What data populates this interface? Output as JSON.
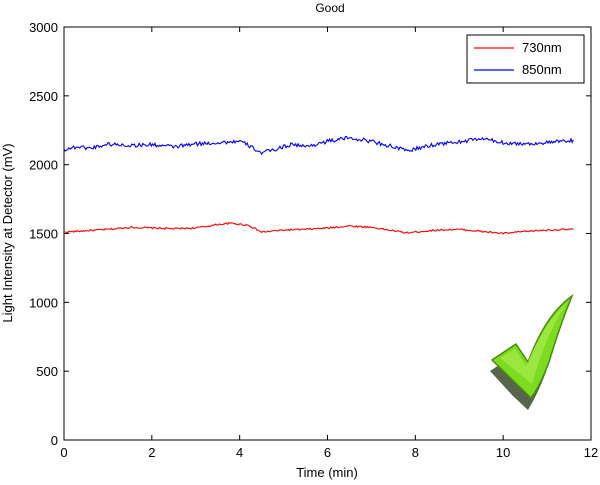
{
  "chart_data": {
    "type": "line",
    "title": "Good",
    "xlabel": "Time (min)",
    "ylabel": "Light Intensity at Detector (mV)",
    "xlim": [
      0,
      12
    ],
    "ylim": [
      0,
      3000
    ],
    "xticks": [
      0,
      2,
      4,
      6,
      8,
      10,
      12
    ],
    "yticks": [
      0,
      500,
      1000,
      1500,
      2000,
      2500,
      3000
    ],
    "grid": false,
    "legend_position": "top-right",
    "series": [
      {
        "name": "730nm",
        "color": "#ff0000",
        "x": [
          0,
          0.5,
          1,
          1.5,
          2,
          2.5,
          3,
          3.5,
          3.8,
          4.2,
          4.5,
          5,
          5.5,
          6,
          6.5,
          7,
          7.5,
          7.8,
          8.5,
          9,
          9.5,
          10,
          10.5,
          11,
          11.6
        ],
        "y": [
          1510,
          1520,
          1530,
          1545,
          1540,
          1535,
          1540,
          1565,
          1575,
          1560,
          1510,
          1525,
          1530,
          1540,
          1555,
          1545,
          1520,
          1505,
          1525,
          1530,
          1515,
          1500,
          1515,
          1525,
          1530
        ]
      },
      {
        "name": "850nm",
        "color": "#0000ff",
        "x": [
          0,
          0.3,
          0.6,
          1,
          1.5,
          2,
          2.5,
          3,
          3.5,
          4,
          4.2,
          4.5,
          4.8,
          5.2,
          5.5,
          6,
          6.5,
          7,
          7.5,
          7.8,
          8,
          8.5,
          9,
          9.5,
          10,
          10.5,
          11,
          11.6
        ],
        "y": [
          2110,
          2130,
          2120,
          2150,
          2140,
          2145,
          2130,
          2150,
          2160,
          2170,
          2140,
          2085,
          2110,
          2150,
          2130,
          2170,
          2195,
          2170,
          2130,
          2100,
          2115,
          2150,
          2165,
          2190,
          2160,
          2150,
          2160,
          2175
        ]
      }
    ]
  },
  "decoration": {
    "checkmark_icon": "checkmark-icon",
    "checkmark_color": "#7ddc1f"
  }
}
